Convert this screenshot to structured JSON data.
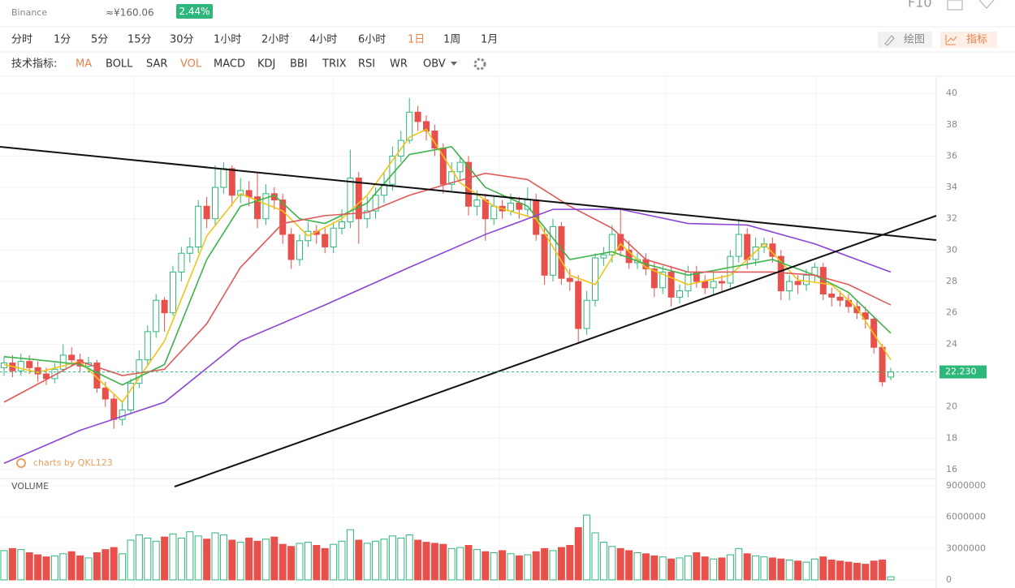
{
  "header": {
    "exchange": "Binance",
    "cny_price": "≈¥160.06",
    "change": "2.44%",
    "f10": "F10"
  },
  "toolbar": {
    "intervals": [
      {
        "label": "分时"
      },
      {
        "label": "1分"
      },
      {
        "label": "5分"
      },
      {
        "label": "15分"
      },
      {
        "label": "30分"
      },
      {
        "label": "1小时"
      },
      {
        "label": "2小时"
      },
      {
        "label": "4小时"
      },
      {
        "label": "6小时"
      },
      {
        "label": "1日",
        "active": true
      },
      {
        "label": "1周"
      },
      {
        "label": "1月"
      }
    ],
    "tools": [
      "绘图",
      "指标"
    ],
    "indicator_label": "技术指标:",
    "indicators": [
      {
        "label": "MA",
        "active": true
      },
      {
        "label": "BOLL"
      },
      {
        "label": "SAR"
      },
      {
        "label": "VOL",
        "active": true
      },
      {
        "label": "MACD"
      },
      {
        "label": "KDJ"
      },
      {
        "label": "BBI"
      },
      {
        "label": "TRIX"
      },
      {
        "label": "RSI"
      },
      {
        "label": "WR"
      },
      {
        "label": "OBV"
      }
    ]
  },
  "chart_data": {
    "type": "candlestick",
    "watermark": "charts by QKL123",
    "up_color": "#2db77a",
    "down_color": "#e8504c",
    "open": [
      22.5,
      22.8,
      22.3,
      22.9,
      22.5,
      22.1,
      21.8,
      22.4,
      23.3,
      23.0,
      22.6,
      22.8,
      21.2,
      20.5,
      19.2,
      19.8,
      21.5,
      23.0,
      24.8,
      26.8,
      26.0,
      28.6,
      29.8,
      30.2,
      32.8,
      32.0,
      34.0,
      35.2,
      33.5,
      33.8,
      33.4,
      32.0,
      33.6,
      33.2,
      31.0,
      29.4,
      30.6,
      31.2,
      31.0,
      30.2,
      31.4,
      31.8,
      34.6,
      32.0,
      32.5,
      33.5,
      34.2,
      36.0,
      37.0,
      38.8,
      38.2,
      37.6,
      36.5,
      34.2,
      35.0,
      35.6,
      32.8,
      33.2,
      32.0,
      32.8,
      32.5,
      33.0,
      32.6,
      33.2,
      31.0,
      28.4,
      31.5,
      28.2,
      28.0,
      25.0,
      26.8,
      29.5,
      29.7,
      31.0,
      30.0,
      29.2,
      29.4,
      28.8,
      27.6,
      28.6,
      27.0,
      27.4,
      28.6,
      28.0,
      27.6,
      28.0,
      27.9,
      29.6,
      31.0,
      29.4,
      30.2,
      30.4,
      29.6,
      27.4,
      28.0,
      27.8,
      28.4,
      28.9,
      27.2,
      27.0,
      26.8,
      26.4,
      26.0,
      25.6,
      23.8,
      21.9
    ],
    "high": [
      23.2,
      23.3,
      23.4,
      23.3,
      22.9,
      22.5,
      22.8,
      24.0,
      23.8,
      23.4,
      23.2,
      23.0,
      21.6,
      20.8,
      20.4,
      21.8,
      23.6,
      25.2,
      27.2,
      27.0,
      29.0,
      30.2,
      30.8,
      33.2,
      33.4,
      35.4,
      35.6,
      35.4,
      34.6,
      34.4,
      35.0,
      34.2,
      34.0,
      33.6,
      31.4,
      31.0,
      31.8,
      31.6,
      31.4,
      31.8,
      32.6,
      36.4,
      35.0,
      33.4,
      34.0,
      35.0,
      36.6,
      37.6,
      39.7,
      39.2,
      38.6,
      38.0,
      36.8,
      35.6,
      36.0,
      36.0,
      33.8,
      33.6,
      33.4,
      33.2,
      33.6,
      33.4,
      34.0,
      33.6,
      31.4,
      32.0,
      31.8,
      28.8,
      28.4,
      27.4,
      29.8,
      30.2,
      31.6,
      32.6,
      30.6,
      29.8,
      29.8,
      29.2,
      29.0,
      29.0,
      27.8,
      29.0,
      29.0,
      28.4,
      28.6,
      28.4,
      30.0,
      32.0,
      31.4,
      30.8,
      30.8,
      30.8,
      30.0,
      28.4,
      28.4,
      28.8,
      29.2,
      29.2,
      27.6,
      27.4,
      27.2,
      26.8,
      26.4,
      25.8,
      24.0,
      22.5
    ],
    "low": [
      22.0,
      21.9,
      22.0,
      22.1,
      21.6,
      21.4,
      21.5,
      22.2,
      22.6,
      22.2,
      22.2,
      20.9,
      20.0,
      18.6,
      18.8,
      19.6,
      21.2,
      22.6,
      24.4,
      24.8,
      25.8,
      28.0,
      29.2,
      29.8,
      31.4,
      31.6,
      33.6,
      32.8,
      33.0,
      32.8,
      31.4,
      31.6,
      32.6,
      30.4,
      28.8,
      29.0,
      30.2,
      30.4,
      29.8,
      29.8,
      31.0,
      31.4,
      30.4,
      31.4,
      32.0,
      33.0,
      33.8,
      35.6,
      36.8,
      37.6,
      37.0,
      36.0,
      33.6,
      33.8,
      34.4,
      32.2,
      32.2,
      30.6,
      31.6,
      32.0,
      32.2,
      32.0,
      32.2,
      30.6,
      27.8,
      28.0,
      27.8,
      27.4,
      24.0,
      24.6,
      26.4,
      29.0,
      29.2,
      29.6,
      28.8,
      28.8,
      28.4,
      27.0,
      27.2,
      26.4,
      26.6,
      27.0,
      27.6,
      27.2,
      27.2,
      27.4,
      27.6,
      29.2,
      28.8,
      29.0,
      29.8,
      29.2,
      26.8,
      26.8,
      27.2,
      27.4,
      28.0,
      26.8,
      26.4,
      26.4,
      26.0,
      25.6,
      25.0,
      23.4,
      21.3,
      21.7
    ],
    "close": [
      22.8,
      22.3,
      22.9,
      22.5,
      22.1,
      21.8,
      22.4,
      23.3,
      23.0,
      22.6,
      22.8,
      21.2,
      20.5,
      19.2,
      19.8,
      21.5,
      23.0,
      24.8,
      26.8,
      26.0,
      28.6,
      29.8,
      30.2,
      32.8,
      32.0,
      34.0,
      35.2,
      33.5,
      33.8,
      33.4,
      32.0,
      33.6,
      33.2,
      31.0,
      29.4,
      30.6,
      31.2,
      31.0,
      30.2,
      31.4,
      31.8,
      34.6,
      32.0,
      32.5,
      33.5,
      34.2,
      36.0,
      37.0,
      38.8,
      38.2,
      37.6,
      36.5,
      34.2,
      35.0,
      35.6,
      32.8,
      33.2,
      32.0,
      32.8,
      32.5,
      33.0,
      32.6,
      33.2,
      31.0,
      28.4,
      31.5,
      28.2,
      28.0,
      25.0,
      26.8,
      29.5,
      29.7,
      31.0,
      30.0,
      29.2,
      29.4,
      28.8,
      27.6,
      28.6,
      27.0,
      27.4,
      28.6,
      28.0,
      27.6,
      28.0,
      27.9,
      29.6,
      31.0,
      29.4,
      30.2,
      30.4,
      29.6,
      27.4,
      28.0,
      27.8,
      28.4,
      28.9,
      27.2,
      27.0,
      26.8,
      26.4,
      26.0,
      25.6,
      23.8,
      21.6,
      22.23
    ],
    "ylim": [
      15.43,
      41.04
    ],
    "yticks": [
      16,
      18,
      20,
      22,
      24,
      26,
      28,
      30,
      32,
      34,
      36,
      38,
      40
    ],
    "grid": true,
    "last_price": {
      "value": 22.23,
      "label": "22.230",
      "color": "#2db77a"
    },
    "moving_averages": [
      {
        "color": "#f0c419",
        "x": [
          0,
          4,
          9,
          14,
          19,
          24,
          28,
          33,
          36,
          40,
          43,
          48,
          50,
          54,
          58,
          63,
          67,
          70,
          73,
          76,
          81,
          86,
          90,
          94,
          98,
          101,
          105
        ],
        "values": [
          22.7,
          22.2,
          22.9,
          20.3,
          24.2,
          30.9,
          33.6,
          32.5,
          30.9,
          32.0,
          33.5,
          37.2,
          37.7,
          34.3,
          32.8,
          32.0,
          28.4,
          27.8,
          30.4,
          28.9,
          27.8,
          28.4,
          30.4,
          28.1,
          27.8,
          26.3,
          23.0
        ]
      },
      {
        "color": "#3cb44b",
        "x": [
          0,
          4,
          9,
          14,
          19,
          24,
          28,
          32,
          35,
          38,
          43,
          48,
          53,
          57,
          62,
          67,
          72,
          76,
          81,
          86,
          91,
          96,
          100,
          105
        ],
        "values": [
          23.2,
          23.0,
          22.7,
          21.4,
          22.7,
          29.4,
          32.8,
          33.5,
          32.0,
          31.7,
          33.0,
          36.1,
          36.6,
          34.0,
          32.8,
          29.4,
          29.9,
          29.1,
          28.4,
          28.9,
          29.4,
          28.4,
          27.3,
          24.7
        ]
      },
      {
        "color": "#e05a5a",
        "x": [
          0,
          9,
          14,
          19,
          24,
          28,
          33,
          38,
          43,
          48,
          53,
          57,
          62,
          67,
          72,
          76,
          81,
          86,
          91,
          96,
          100,
          105
        ],
        "values": [
          20.3,
          22.9,
          22.0,
          22.4,
          25.3,
          28.9,
          31.7,
          32.2,
          32.4,
          33.5,
          34.3,
          34.9,
          34.5,
          32.8,
          31.4,
          29.4,
          28.6,
          28.6,
          28.6,
          28.4,
          27.8,
          26.5
        ]
      },
      {
        "color": "#8b45d6",
        "x": [
          0,
          9,
          19,
          28,
          38,
          48,
          57,
          65,
          73,
          81,
          88,
          96,
          105
        ],
        "values": [
          16.4,
          18.5,
          20.3,
          24.2,
          26.5,
          28.9,
          31.0,
          32.6,
          32.6,
          31.7,
          31.6,
          30.4,
          28.6
        ]
      }
    ],
    "volume": {
      "title": "VOLUME",
      "values": [
        2800000,
        3000000,
        2900000,
        2600000,
        2400000,
        2200000,
        2300000,
        2500000,
        2700000,
        2300000,
        2100000,
        2600000,
        2900000,
        3100000,
        2500000,
        3800000,
        4300000,
        4000000,
        3700000,
        4100000,
        4400000,
        4000000,
        4600000,
        4200000,
        3900000,
        4500000,
        4300000,
        3800000,
        3600000,
        4000000,
        3700000,
        3900000,
        4100000,
        3400000,
        3200000,
        3500000,
        3600000,
        3300000,
        3000000,
        3400000,
        3700000,
        4800000,
        3800000,
        3500000,
        3700000,
        3900000,
        4200000,
        4000000,
        4300000,
        3800000,
        3600000,
        3500000,
        3400000,
        3000000,
        3100000,
        3300000,
        2900000,
        2700000,
        2600000,
        2800000,
        2500000,
        2300000,
        2400000,
        2700000,
        3000000,
        2800000,
        3100000,
        3300000,
        5000000,
        6200000,
        4500000,
        3600000,
        3200000,
        3000000,
        2800000,
        2600000,
        2500000,
        2300000,
        2200000,
        2000000,
        2100000,
        2300000,
        2600000,
        2200000,
        2000000,
        2100000,
        2400000,
        3000000,
        2500000,
        2300000,
        2200000,
        2100000,
        2000000,
        1900000,
        1800000,
        1700000,
        2000000,
        2200000,
        1900000,
        1800000,
        1700000,
        1600000,
        1500000,
        1800000,
        1900000,
        300000
      ],
      "ylim": [
        0,
        9000000
      ],
      "yticks": [
        0,
        3000000,
        6000000,
        9000000
      ]
    }
  }
}
